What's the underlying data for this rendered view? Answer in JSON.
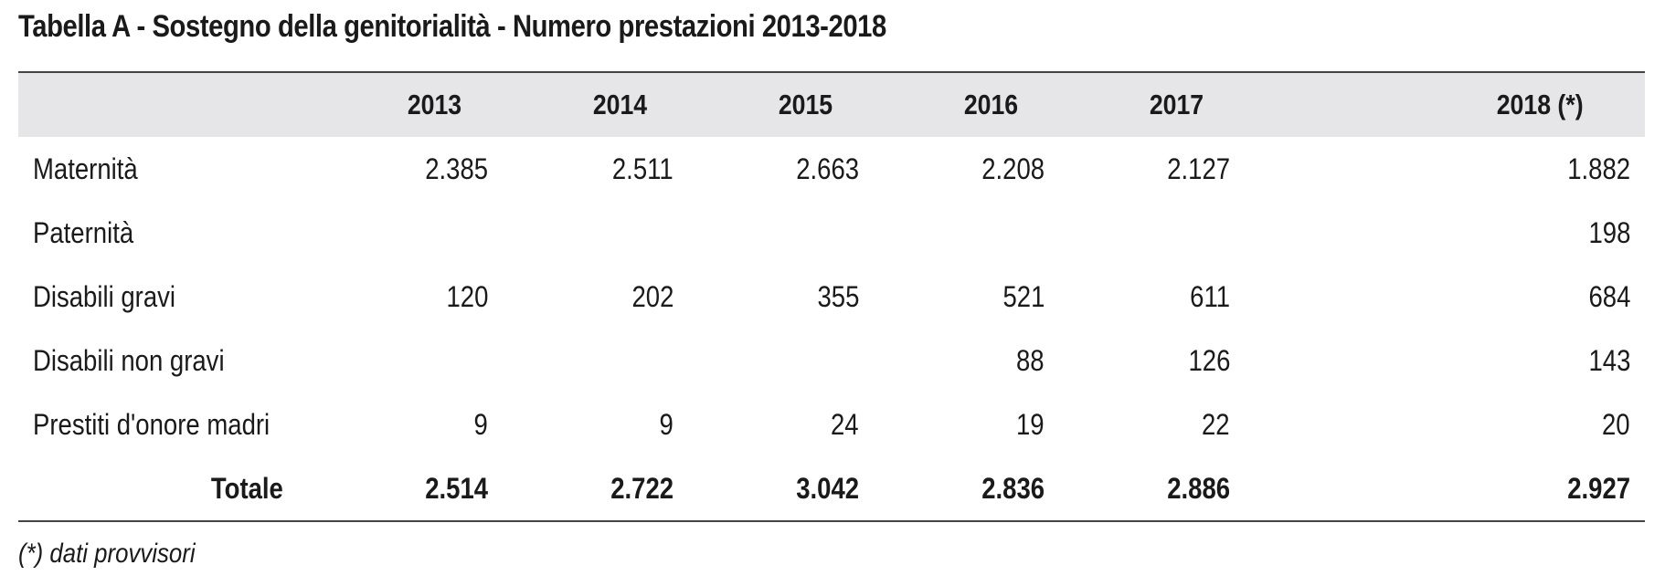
{
  "title": "Tabella A - Sostegno della genitorialità - Numero prestazioni 2013-2018",
  "table": {
    "headers": [
      "",
      "2013",
      "2014",
      "2015",
      "2016",
      "2017",
      "2018 (*)"
    ],
    "rows": [
      {
        "label": "Maternità",
        "values": [
          "2.385",
          "2.511",
          "2.663",
          "2.208",
          "2.127",
          "1.882"
        ]
      },
      {
        "label": "Paternità",
        "values": [
          "",
          "",
          "",
          "",
          "",
          "198"
        ]
      },
      {
        "label": "Disabili gravi",
        "values": [
          "120",
          "202",
          "355",
          "521",
          "611",
          "684"
        ]
      },
      {
        "label": "Disabili non gravi",
        "values": [
          "",
          "",
          "",
          "88",
          "126",
          "143"
        ]
      },
      {
        "label": "Prestiti d'onore madri",
        "values": [
          "9",
          "9",
          "24",
          "19",
          "22",
          "20"
        ]
      }
    ],
    "total": {
      "label": "Totale",
      "values": [
        "2.514",
        "2.722",
        "3.042",
        "2.836",
        "2.886",
        "2.927"
      ]
    }
  },
  "footnote": "(*) dati provvisori"
}
